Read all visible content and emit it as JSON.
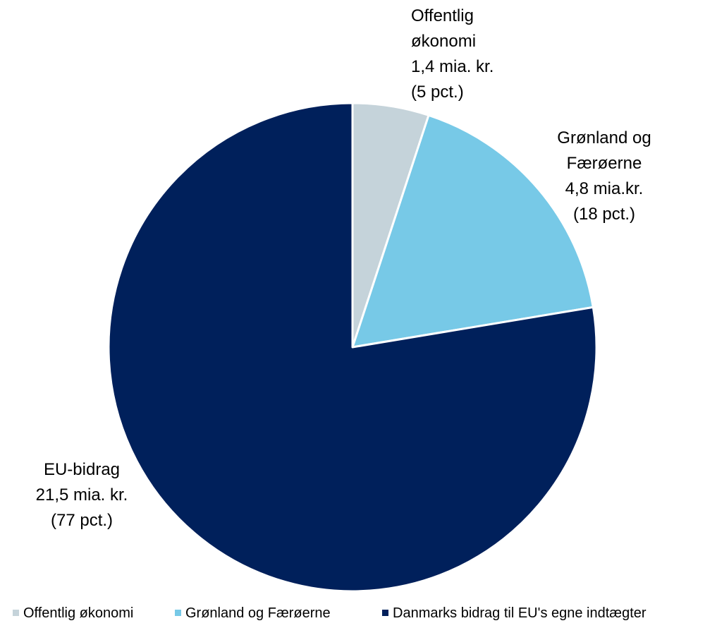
{
  "chart_data": {
    "type": "pie",
    "slices": [
      {
        "name": "Offentlig økonomi",
        "value": 1.4,
        "percent": 5,
        "color": "#c5d3da",
        "label_lines": [
          "Offentlig",
          "økonomi",
          "1,4 mia. kr.",
          "(5 pct.)"
        ]
      },
      {
        "name": "Grønland og Færøerne",
        "value": 4.8,
        "percent": 18,
        "color": "#77c9e7",
        "label_lines": [
          "Grønland og",
          "Færøerne",
          "4,8 mia.kr.",
          "(18 pct.)"
        ]
      },
      {
        "name": "Danmarks bidrag til EU's egne indtægter",
        "value": 21.5,
        "percent": 77,
        "color": "#00205b",
        "label_lines": [
          "EU-bidrag",
          "21,5 mia. kr.",
          "(77 pct.)"
        ]
      }
    ],
    "legend": {
      "position": "bottom",
      "entries": [
        "Offentlig økonomi",
        "Grønland og Færøerne",
        "Danmarks bidrag til EU's egne indtægter"
      ]
    }
  }
}
